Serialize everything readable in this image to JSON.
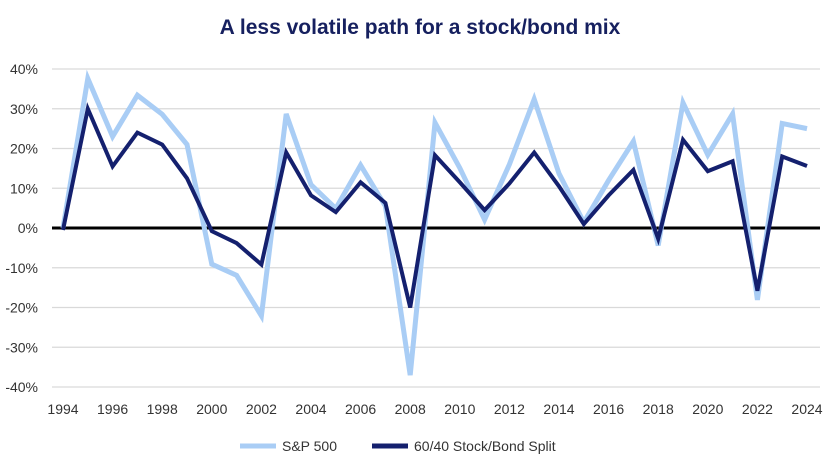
{
  "chart_data": {
    "type": "line",
    "title": "A less volatile path for a stock/bond mix",
    "xlabel": "",
    "ylabel": "",
    "x": [
      1994,
      1995,
      1996,
      1997,
      1998,
      1999,
      2000,
      2001,
      2002,
      2003,
      2004,
      2005,
      2006,
      2007,
      2008,
      2009,
      2010,
      2011,
      2012,
      2013,
      2014,
      2015,
      2016,
      2017,
      2018,
      2019,
      2020,
      2021,
      2022,
      2023,
      2024
    ],
    "xticks": [
      "1994",
      "1996",
      "1998",
      "2000",
      "2002",
      "2004",
      "2006",
      "2008",
      "2010",
      "2012",
      "2014",
      "2016",
      "2018",
      "2020",
      "2022",
      "2024"
    ],
    "ylim": [
      -40,
      40
    ],
    "yticks": [
      "-40%",
      "-30%",
      "-20%",
      "-10%",
      "0%",
      "10%",
      "20%",
      "30%",
      "40%"
    ],
    "grid": true,
    "legend_position": "bottom",
    "series": [
      {
        "name": "S&P 500",
        "color": "#a9cdf5",
        "values": [
          0,
          37.6,
          23,
          33.4,
          28.6,
          21,
          -9.1,
          -11.9,
          -22.1,
          28.7,
          10.9,
          4.9,
          15.8,
          5.5,
          -37,
          26.5,
          15.1,
          2.1,
          16,
          32.4,
          13.7,
          1.4,
          12,
          21.8,
          -4.4,
          31.5,
          18.4,
          28.7,
          -18.1,
          26.3,
          25
        ]
      },
      {
        "name": "60/40 Stock/Bond Split",
        "color": "#14206e",
        "values": [
          -0.5,
          30,
          15.5,
          24,
          21,
          12.5,
          -0.8,
          -3.8,
          -9.2,
          19,
          8.2,
          4,
          11.5,
          6.3,
          -20,
          18.3,
          11.5,
          4.5,
          11.2,
          19,
          10.5,
          1,
          8.2,
          14.6,
          -2.7,
          22.2,
          14.3,
          16.8,
          -15.8,
          18,
          15.6
        ]
      }
    ]
  }
}
